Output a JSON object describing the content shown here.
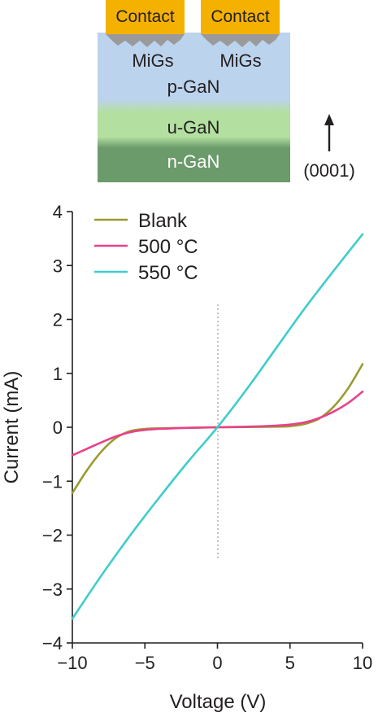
{
  "diagram": {
    "contact_labels": [
      "Contact",
      "Contact"
    ],
    "migs_labels": [
      "MiGs",
      "MiGs"
    ],
    "layers": [
      {
        "label": "p-GaN",
        "color": "#bcd3ee"
      },
      {
        "label": "u-GaN",
        "color": "#b3e0a0"
      },
      {
        "label": "n-GaN",
        "color": "#6b9a6b"
      }
    ],
    "contact_color": "#f5b100",
    "migs_color": "#9a9a9a",
    "direction_label": "(0001)"
  },
  "chart_data": {
    "type": "line",
    "title": "",
    "xlabel": "Voltage (V)",
    "ylabel": "Current (mA)",
    "xlim": [
      -10,
      10
    ],
    "ylim": [
      -4,
      4
    ],
    "xticks": [
      -10,
      -5,
      0,
      5,
      10
    ],
    "yticks": [
      -4,
      -3,
      -2,
      -1,
      0,
      1,
      2,
      3,
      4
    ],
    "xtick_labels": [
      "−10",
      "−5",
      "0",
      "5",
      "10"
    ],
    "ytick_labels": [
      "−4",
      "−3",
      "−2",
      "−1",
      "0",
      "1",
      "2",
      "3",
      "4"
    ],
    "legend_position": "top-left",
    "grid": false,
    "series": [
      {
        "name": "Blank",
        "color": "#9a9a30",
        "x": [
          -10,
          -9,
          -8,
          -7,
          -6,
          -5,
          -4,
          -2,
          0,
          2,
          4,
          5,
          6,
          7,
          8,
          9,
          10
        ],
        "y": [
          -1.22,
          -0.8,
          -0.45,
          -0.2,
          -0.07,
          -0.03,
          -0.02,
          -0.01,
          0,
          0.005,
          0.01,
          0.02,
          0.06,
          0.16,
          0.38,
          0.72,
          1.17
        ]
      },
      {
        "name": "500 °C",
        "color": "#e8418a",
        "x": [
          -10,
          -9,
          -8,
          -7,
          -6,
          -5,
          -4,
          -2,
          0,
          2,
          4,
          5,
          6,
          7,
          8,
          9,
          10
        ],
        "y": [
          -0.52,
          -0.4,
          -0.28,
          -0.17,
          -0.09,
          -0.05,
          -0.03,
          -0.01,
          0,
          0.01,
          0.03,
          0.05,
          0.09,
          0.17,
          0.29,
          0.45,
          0.66
        ]
      },
      {
        "name": "550 °C",
        "color": "#3fcccc",
        "x": [
          -10,
          -8,
          -6,
          -4,
          -2,
          0,
          2,
          4,
          6,
          8,
          10
        ],
        "y": [
          -3.55,
          -2.75,
          -2.0,
          -1.3,
          -0.63,
          0,
          0.7,
          1.45,
          2.2,
          2.9,
          3.58
        ]
      }
    ]
  }
}
